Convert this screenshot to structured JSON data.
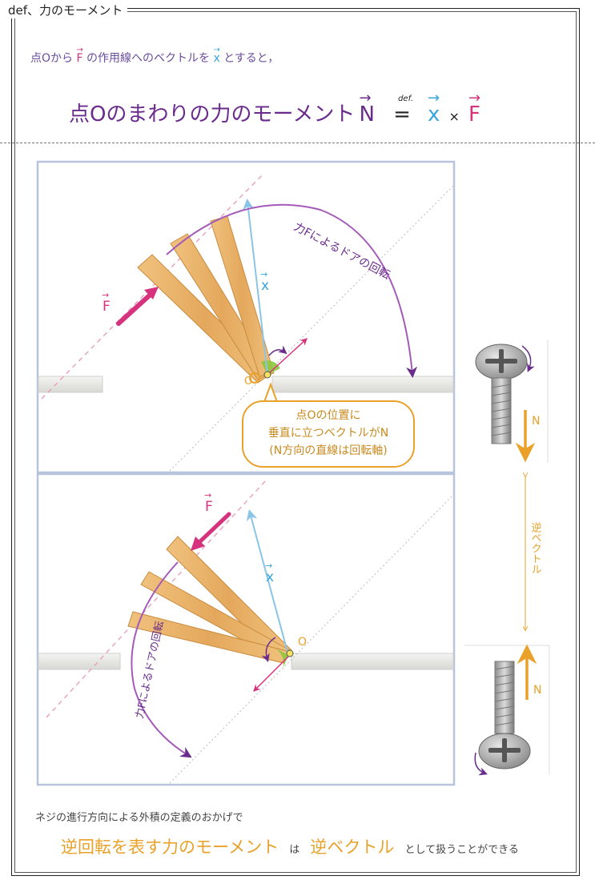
{
  "heading": {
    "text": "def、力のモーメント"
  },
  "intro": {
    "part1": "点Oから",
    "vec_F": "F",
    "part2": "の作用線へのベクトルを",
    "vec_x": "x",
    "part3": "とすると，"
  },
  "definition": {
    "lhs": "点Oのまわりの力のモーメント",
    "vec_N": "N",
    "defmark": "def.",
    "eq": "=",
    "vec_x": "x",
    "cross": "×",
    "vec_F": "F"
  },
  "top_panel": {
    "label_F": "F",
    "label_x": "x",
    "label_O": "O",
    "rotation_label": "力Fによるドアの回転",
    "bubble_line1": "点Oの位置に",
    "bubble_line2": "垂直に立つベクトルがN",
    "bubble_line3": "(N方向の直線は回転軸)"
  },
  "bottom_panel": {
    "label_F": "F",
    "label_x": "x",
    "label_O": "O",
    "rotation_label": "力Fによるドアの回転"
  },
  "screws": {
    "top_label_N": "N",
    "bottom_label_N": "N",
    "reverse_label": "逆ベクトル"
  },
  "footer": {
    "line1": "ネジの進行方向による外積の定義のおかげで",
    "line2a": "逆回転を表す力のモーメント",
    "line2b": "は",
    "line2c": "逆ベクトル",
    "line2d": "として扱うことができる"
  },
  "colors": {
    "purple": "#6a2c8c",
    "cyan": "#39a5d8",
    "pink": "#d6337e",
    "orange": "#e9a12a",
    "green": "#8dc63f",
    "wood": "#e9b36b"
  }
}
